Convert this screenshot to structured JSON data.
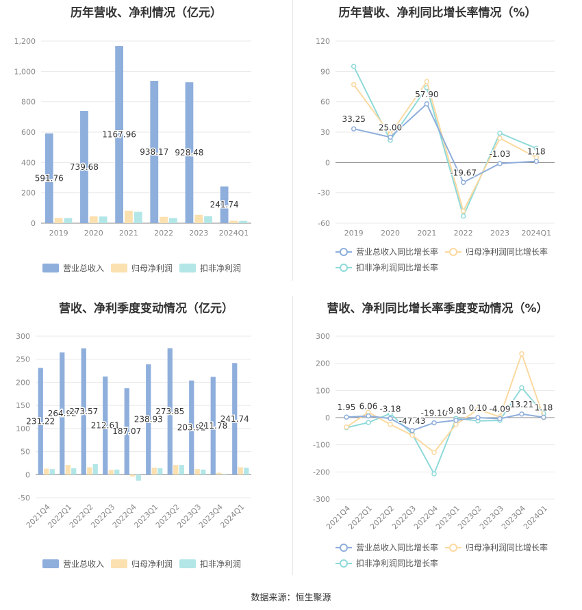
{
  "source_label": "数据来源：恒生聚源",
  "chart_data": [
    {
      "type": "bar",
      "title": "历年营收、净利情况（亿元）",
      "categories": [
        "2019",
        "2020",
        "2021",
        "2022",
        "2023",
        "2024Q1"
      ],
      "ylim": [
        0,
        1200
      ],
      "yticks": [
        0,
        200,
        400,
        600,
        800,
        1000,
        1200
      ],
      "ytick_labels": [
        "0",
        "200",
        "400",
        "600",
        "800",
        "1,000",
        "1,200"
      ],
      "series": [
        {
          "name": "营业总收入",
          "color": "#8eaedc",
          "values": [
            591.76,
            739.68,
            1167.96,
            938.17,
            928.48,
            241.74
          ],
          "labels": [
            "591.76",
            "739.68",
            "1167.96",
            "938.17",
            "928.48",
            "241.74"
          ]
        },
        {
          "name": "归母净利润",
          "color": "#fbe0b0",
          "values": [
            35,
            45,
            82,
            42,
            55,
            16
          ]
        },
        {
          "name": "扣非净利润",
          "color": "#b3e6e6",
          "values": [
            34,
            44,
            75,
            34,
            46,
            15
          ]
        }
      ],
      "legend_position": "bottom",
      "grid": true
    },
    {
      "type": "line",
      "title": "历年营收、净利同比增长率情况（%）",
      "categories": [
        "2019",
        "2020",
        "2021",
        "2022",
        "2023",
        "2024Q1"
      ],
      "ylim": [
        -60,
        120
      ],
      "yticks": [
        -60,
        -30,
        0,
        30,
        60,
        90,
        120
      ],
      "ytick_labels": [
        "-60",
        "-30",
        "0",
        "30",
        "60",
        "90",
        "120"
      ],
      "series": [
        {
          "name": "营业总收入同比增长率",
          "color": "#8eaedc",
          "values": [
            33.25,
            25.0,
            57.9,
            -19.67,
            -1.03,
            1.18
          ],
          "labels": [
            "33.25",
            "25.00",
            "57.90",
            "-19.67",
            "-1.03",
            "1.18"
          ]
        },
        {
          "name": "归母净利润同比增长率",
          "color": "#fbd9a0",
          "values": [
            77,
            28,
            80,
            -48,
            24,
            5
          ]
        },
        {
          "name": "扣非净利润同比增长率",
          "color": "#8fd9d9",
          "values": [
            95,
            22,
            74,
            -53,
            29,
            14
          ]
        }
      ],
      "legend_position": "bottom",
      "grid": true
    },
    {
      "type": "bar",
      "title": "营收、净利季度变动情况（亿元）",
      "categories": [
        "2021Q4",
        "2022Q1",
        "2022Q2",
        "2022Q3",
        "2022Q4",
        "2023Q1",
        "2023Q2",
        "2023Q3",
        "2023Q4",
        "2024Q1"
      ],
      "ylim": [
        -50,
        300
      ],
      "yticks": [
        -50,
        0,
        50,
        100,
        150,
        200,
        250,
        300
      ],
      "ytick_labels": [
        "-50",
        "0",
        "50",
        "100",
        "150",
        "200",
        "250",
        "300"
      ],
      "series": [
        {
          "name": "营业总收入",
          "color": "#8eaedc",
          "values": [
            231.22,
            264.92,
            273.57,
            212.61,
            187.07,
            238.93,
            273.85,
            203.92,
            211.78,
            241.74
          ],
          "labels": [
            "231.22",
            "264.92",
            "273.57",
            "212.61",
            "187.07",
            "238.93",
            "273.85",
            "203.92",
            "211.78",
            "241.74"
          ]
        },
        {
          "name": "归母净利润",
          "color": "#fbe0b0",
          "values": [
            13,
            21,
            16,
            10,
            -4,
            15,
            21,
            12,
            4,
            16
          ]
        },
        {
          "name": "扣非净利润",
          "color": "#b3e6e6",
          "values": [
            12,
            14,
            23,
            11,
            -13,
            14,
            21,
            11,
            1,
            15
          ]
        }
      ],
      "legend_position": "bottom",
      "grid": true
    },
    {
      "type": "line",
      "title": "营收、净利同比增长率季度变动情况（%）",
      "categories": [
        "2021Q4",
        "2022Q1",
        "2022Q2",
        "2022Q3",
        "2022Q4",
        "2023Q1",
        "2023Q2",
        "2023Q3",
        "2023Q4",
        "2024Q1"
      ],
      "ylim": [
        -300,
        300
      ],
      "yticks": [
        -300,
        -200,
        -100,
        0,
        100,
        200,
        300
      ],
      "ytick_labels": [
        "-300",
        "-200",
        "-100",
        "0",
        "100",
        "200",
        "300"
      ],
      "series": [
        {
          "name": "营业总收入同比增长率",
          "color": "#8eaedc",
          "values": [
            1.95,
            6.06,
            -3.18,
            -47.43,
            -19.1,
            -9.81,
            0.1,
            -4.09,
            13.21,
            1.18
          ],
          "labels": [
            "1.95",
            "6.06",
            "-3.18",
            "-47.43",
            "-19.10",
            "-9.81",
            "0.10",
            "-4.09",
            "13.21",
            "1.18"
          ]
        },
        {
          "name": "归母净利润同比增长率",
          "color": "#fbd9a0",
          "values": [
            -35,
            20,
            -25,
            -65,
            -128,
            -25,
            30,
            3,
            235,
            0
          ]
        },
        {
          "name": "扣非净利润同比增长率",
          "color": "#8fd9d9",
          "values": [
            -37,
            -18,
            15,
            -60,
            -207,
            -3,
            -12,
            -10,
            110,
            15
          ]
        }
      ],
      "legend_position": "bottom",
      "grid": true
    }
  ]
}
